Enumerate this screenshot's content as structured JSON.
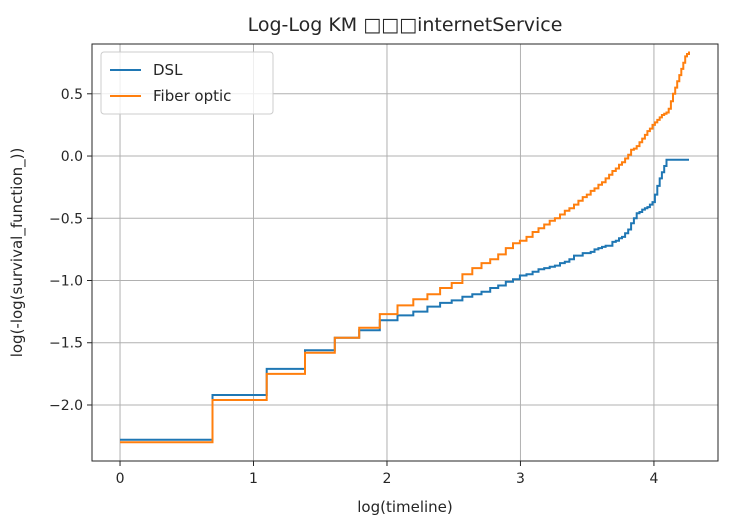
{
  "chart_data": {
    "type": "line",
    "step": true,
    "title": "Log-Log KM □□□internetService",
    "xlabel": "log(timeline)",
    "ylabel": "log(-log(survival_function_))",
    "xlim": [
      -0.21,
      4.48
    ],
    "ylim": [
      -2.45,
      0.9
    ],
    "xticks": [
      0,
      1,
      2,
      3,
      4
    ],
    "xtick_labels": [
      "0",
      "1",
      "2",
      "3",
      "4"
    ],
    "yticks": [
      -2.0,
      -1.5,
      -1.0,
      -0.5,
      0.0,
      0.5
    ],
    "ytick_labels": [
      "−2.0",
      "−1.5",
      "−1.0",
      "−0.5",
      "0.0",
      "0.5"
    ],
    "grid": true,
    "legend_position": "top-left",
    "series": [
      {
        "name": "DSL",
        "color": "#1f77b4",
        "x": [
          0.0,
          0.693,
          1.099,
          1.386,
          1.609,
          1.792,
          1.946,
          2.079,
          2.197,
          2.303,
          2.398,
          2.485,
          2.565,
          2.639,
          2.708,
          2.773,
          2.833,
          2.89,
          2.944,
          2.996,
          3.045,
          3.091,
          3.135,
          3.178,
          3.219,
          3.258,
          3.296,
          3.332,
          3.367,
          3.401,
          3.434,
          3.466,
          3.497,
          3.526,
          3.555,
          3.584,
          3.611,
          3.638,
          3.664,
          3.689,
          3.714,
          3.738,
          3.761,
          3.784,
          3.807,
          3.829,
          3.85,
          3.871,
          3.892,
          3.912,
          3.932,
          3.951,
          3.97,
          3.989,
          4.007,
          4.025,
          4.043,
          4.06,
          4.077,
          4.094,
          4.111,
          4.127,
          4.143,
          4.159,
          4.174,
          4.19,
          4.205,
          4.22,
          4.234,
          4.248,
          4.263
        ],
        "y": [
          -2.28,
          -1.92,
          -1.71,
          -1.56,
          -1.46,
          -1.4,
          -1.32,
          -1.28,
          -1.25,
          -1.21,
          -1.18,
          -1.16,
          -1.13,
          -1.11,
          -1.09,
          -1.06,
          -1.04,
          -1.01,
          -0.99,
          -0.96,
          -0.95,
          -0.93,
          -0.91,
          -0.9,
          -0.89,
          -0.88,
          -0.86,
          -0.85,
          -0.83,
          -0.8,
          -0.8,
          -0.78,
          -0.78,
          -0.77,
          -0.75,
          -0.74,
          -0.73,
          -0.72,
          -0.72,
          -0.69,
          -0.68,
          -0.66,
          -0.65,
          -0.62,
          -0.59,
          -0.54,
          -0.5,
          -0.46,
          -0.45,
          -0.43,
          -0.42,
          -0.41,
          -0.39,
          -0.37,
          -0.31,
          -0.24,
          -0.18,
          -0.13,
          -0.08,
          -0.03,
          -0.03,
          -0.03,
          -0.03,
          -0.03,
          -0.03,
          -0.03,
          -0.03,
          -0.03,
          -0.03,
          -0.03,
          -0.03
        ]
      },
      {
        "name": "Fiber optic",
        "color": "#ff7f0e",
        "x": [
          0.0,
          0.693,
          1.099,
          1.386,
          1.609,
          1.792,
          1.946,
          2.079,
          2.197,
          2.303,
          2.398,
          2.485,
          2.565,
          2.639,
          2.708,
          2.773,
          2.833,
          2.89,
          2.944,
          2.996,
          3.045,
          3.091,
          3.135,
          3.178,
          3.219,
          3.258,
          3.296,
          3.332,
          3.367,
          3.401,
          3.434,
          3.466,
          3.497,
          3.526,
          3.555,
          3.584,
          3.611,
          3.638,
          3.664,
          3.689,
          3.714,
          3.738,
          3.761,
          3.784,
          3.807,
          3.829,
          3.85,
          3.871,
          3.892,
          3.912,
          3.932,
          3.951,
          3.97,
          3.989,
          4.007,
          4.025,
          4.043,
          4.06,
          4.077,
          4.094,
          4.111,
          4.127,
          4.143,
          4.159,
          4.174,
          4.19,
          4.205,
          4.22,
          4.234,
          4.248,
          4.263
        ],
        "y": [
          -2.3,
          -1.96,
          -1.75,
          -1.58,
          -1.46,
          -1.38,
          -1.27,
          -1.2,
          -1.15,
          -1.11,
          -1.06,
          -1.02,
          -0.95,
          -0.9,
          -0.86,
          -0.83,
          -0.79,
          -0.74,
          -0.7,
          -0.68,
          -0.65,
          -0.61,
          -0.58,
          -0.55,
          -0.52,
          -0.5,
          -0.47,
          -0.44,
          -0.42,
          -0.39,
          -0.36,
          -0.33,
          -0.31,
          -0.28,
          -0.26,
          -0.23,
          -0.21,
          -0.18,
          -0.15,
          -0.12,
          -0.1,
          -0.07,
          -0.05,
          -0.02,
          0.01,
          0.05,
          0.06,
          0.08,
          0.11,
          0.14,
          0.17,
          0.2,
          0.22,
          0.25,
          0.27,
          0.29,
          0.31,
          0.33,
          0.34,
          0.35,
          0.38,
          0.44,
          0.5,
          0.55,
          0.6,
          0.65,
          0.7,
          0.75,
          0.8,
          0.82,
          0.84
        ]
      }
    ]
  }
}
